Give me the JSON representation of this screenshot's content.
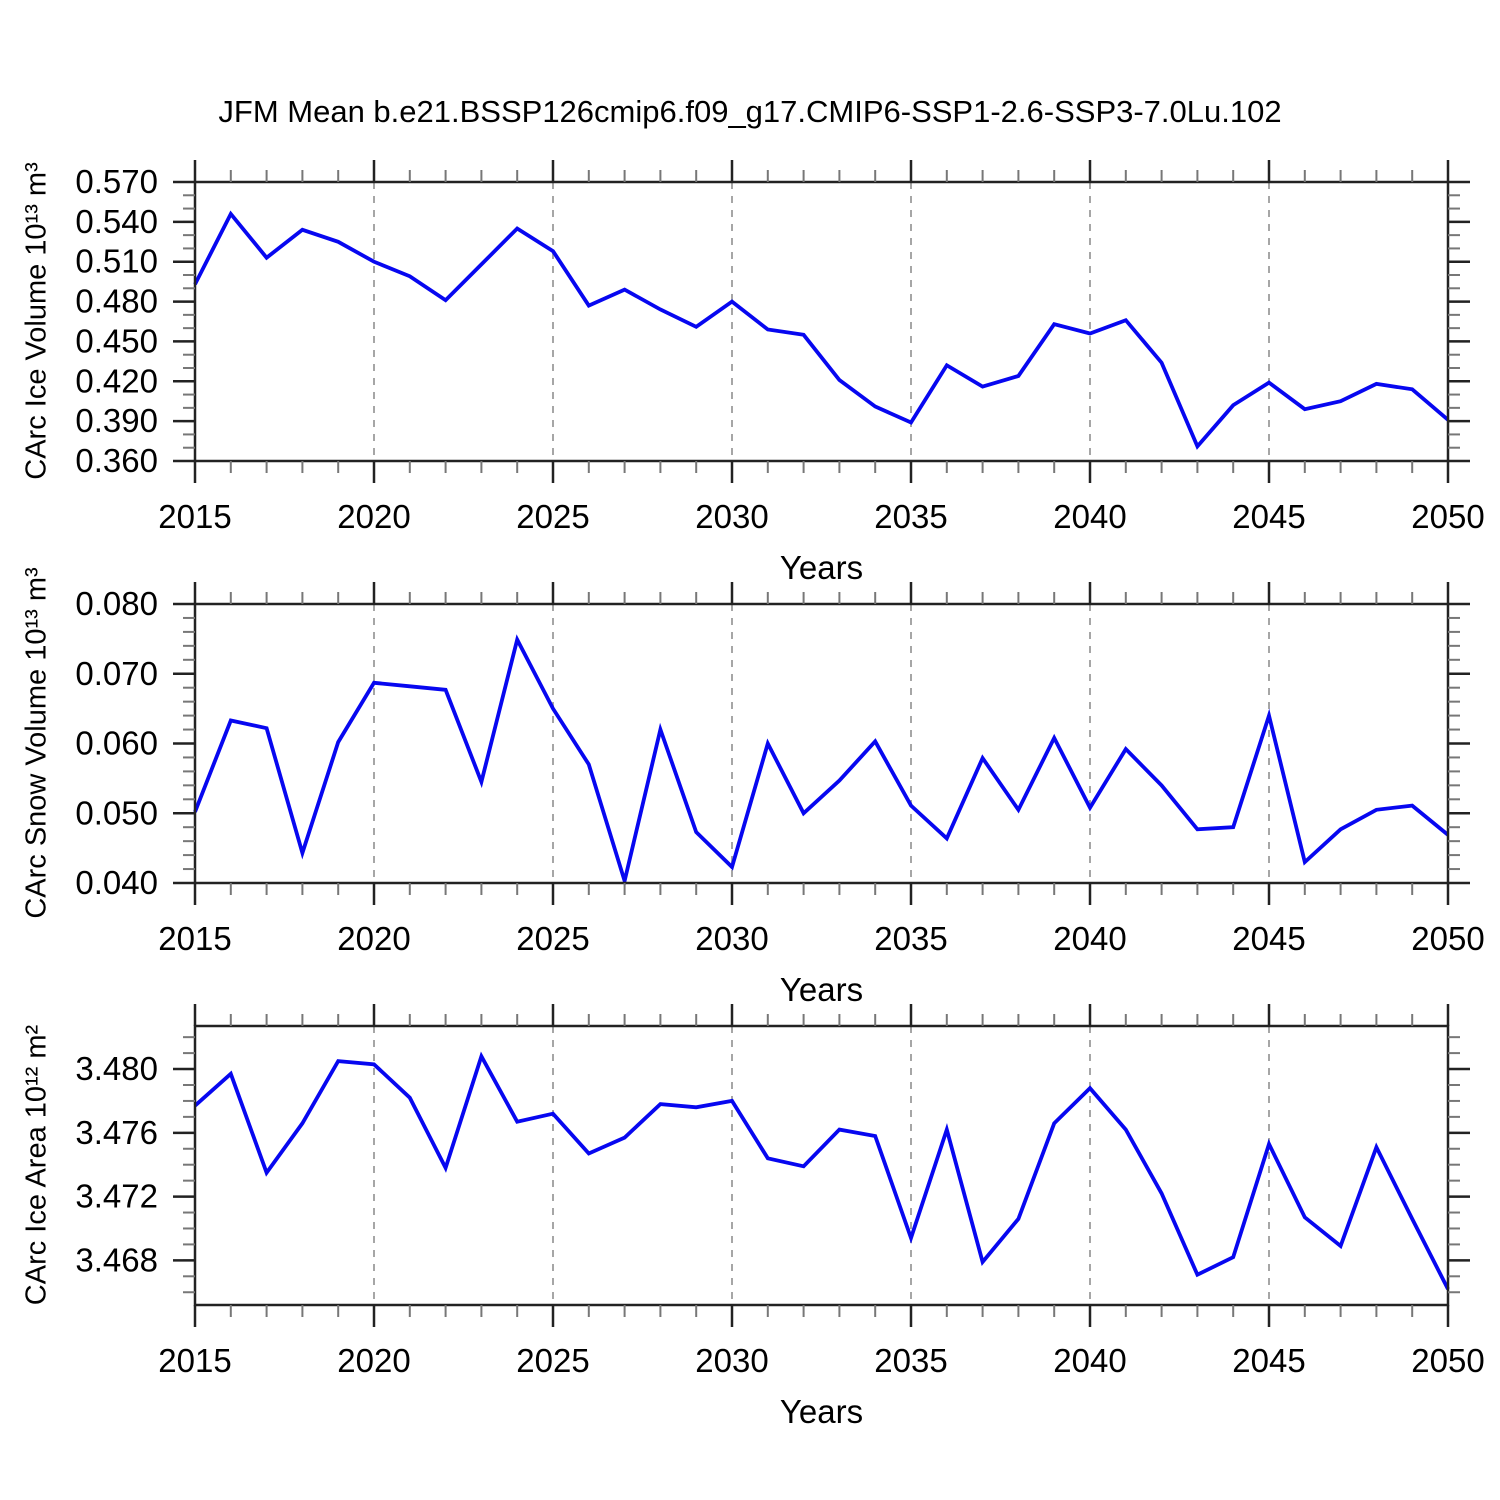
{
  "title": "JFM Mean b.e21.BSSP126cmip6.f09_g17.CMIP6-SSP1-2.6-SSP3-7.0Lu.102",
  "colors": {
    "line": "#0707f0",
    "grid": "#a6a6a6",
    "frame": "#222222",
    "major_tick": "#222222",
    "minor_tick": "#777777",
    "text": "#000000"
  },
  "x_axis": {
    "label": "Years",
    "min": 2015,
    "max": 2050,
    "major_ticks": [
      2015,
      2020,
      2025,
      2030,
      2035,
      2040,
      2045,
      2050
    ],
    "minor_step": 1,
    "grid_years": [
      2020,
      2025,
      2030,
      2035,
      2040,
      2045
    ]
  },
  "years": [
    2015,
    2016,
    2017,
    2018,
    2019,
    2020,
    2021,
    2022,
    2023,
    2024,
    2025,
    2026,
    2027,
    2028,
    2029,
    2030,
    2031,
    2032,
    2033,
    2034,
    2035,
    2036,
    2037,
    2038,
    2039,
    2040,
    2041,
    2042,
    2043,
    2044,
    2045,
    2046,
    2047,
    2048,
    2049,
    2050
  ],
  "chart_data": [
    {
      "type": "line",
      "name": "carc-ice-volume",
      "ylabel": "CArc Ice Volume 10¹³ m³",
      "xlabel": "Years",
      "ylim": [
        0.36,
        0.57
      ],
      "y_major_ticks": [
        0.57,
        0.54,
        0.51,
        0.48,
        0.45,
        0.42,
        0.39,
        0.36
      ],
      "y_minor_step": 0.01,
      "tick_decimals": 3,
      "grid": "x-dashed",
      "legend": "none",
      "values": [
        0.493,
        0.546,
        0.513,
        0.534,
        0.525,
        0.51,
        0.499,
        0.481,
        0.508,
        0.535,
        0.518,
        0.477,
        0.489,
        0.474,
        0.461,
        0.48,
        0.459,
        0.455,
        0.421,
        0.401,
        0.389,
        0.432,
        0.416,
        0.424,
        0.463,
        0.456,
        0.466,
        0.434,
        0.371,
        0.402,
        0.419,
        0.399,
        0.405,
        0.418,
        0.414,
        0.391
      ]
    },
    {
      "type": "line",
      "name": "carc-snow-volume",
      "ylabel": "CArc Snow Volume 10¹³ m³",
      "xlabel": "Years",
      "ylim": [
        0.04,
        0.08
      ],
      "y_major_ticks": [
        0.08,
        0.07,
        0.06,
        0.05,
        0.04
      ],
      "y_minor_step": 0.002,
      "tick_decimals": 3,
      "grid": "x-dashed",
      "legend": "none",
      "values": [
        0.0502,
        0.0633,
        0.0622,
        0.0443,
        0.0602,
        0.0687,
        0.0682,
        0.0677,
        0.0545,
        0.0749,
        0.065,
        0.057,
        0.0403,
        0.062,
        0.0473,
        0.0423,
        0.06,
        0.05,
        0.0547,
        0.0603,
        0.0511,
        0.0464,
        0.0579,
        0.0505,
        0.0608,
        0.0508,
        0.0592,
        0.054,
        0.0477,
        0.048,
        0.064,
        0.043,
        0.0477,
        0.0505,
        0.0511,
        0.0469
      ]
    },
    {
      "type": "line",
      "name": "carc-ice-area",
      "ylabel": "CArc Ice Area 10¹² m²",
      "xlabel": "Years",
      "ylim": [
        3.4652,
        3.4827
      ],
      "y_major_ticks": [
        3.48,
        3.476,
        3.472,
        3.468
      ],
      "y_minor_step": 0.001,
      "tick_decimals": 3,
      "grid": "x-dashed",
      "legend": "none",
      "values": [
        3.4777,
        3.4797,
        3.4735,
        3.4766,
        3.4805,
        3.4803,
        3.4782,
        3.4738,
        3.4808,
        3.4767,
        3.4772,
        3.4747,
        3.4757,
        3.4778,
        3.4776,
        3.478,
        3.4744,
        3.4739,
        3.4762,
        3.4758,
        3.4694,
        3.4762,
        3.4679,
        3.4706,
        3.4766,
        3.4788,
        3.4762,
        3.4722,
        3.4671,
        3.4682,
        3.4753,
        3.4707,
        3.4689,
        3.4751,
        3.4706,
        3.4662
      ]
    }
  ]
}
